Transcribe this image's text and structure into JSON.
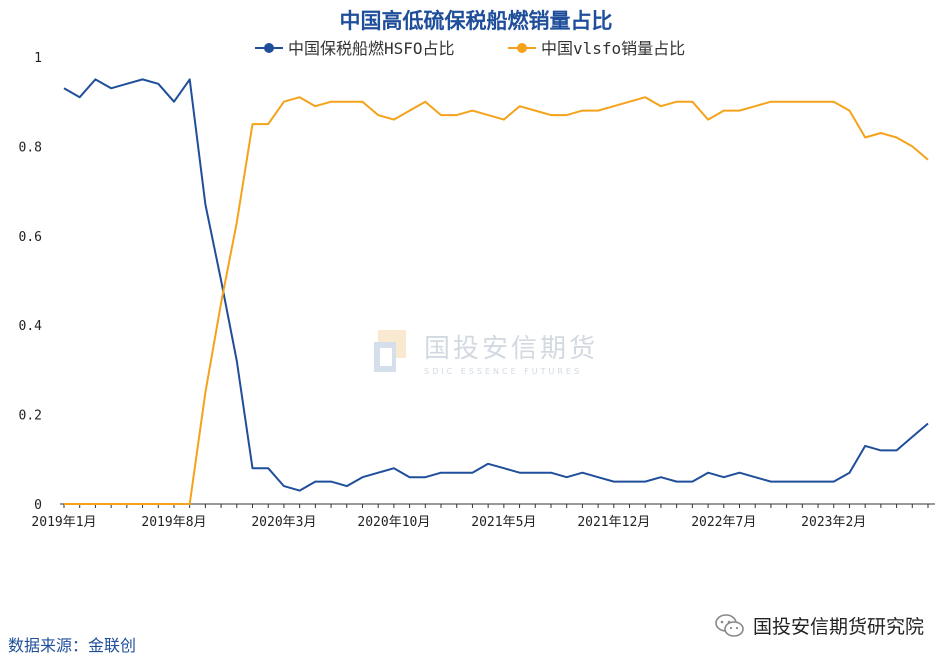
{
  "footer": {
    "source": "数据来源：金联创",
    "brand": "国投安信期货研究院"
  },
  "watermark": {
    "main": "国投安信期货",
    "sub": "SDIC ESSENCE FUTURES"
  },
  "colors": {
    "hsfo": "#1f4e9a",
    "vlsfo": "#f5a21b",
    "title": "#1f4e9a"
  },
  "chart_data": {
    "type": "line",
    "title": "中国高低硫保税船燃销量占比",
    "xlabel": "",
    "ylabel": "",
    "ylim": [
      0,
      1
    ],
    "yticks": [
      "0",
      "0.2",
      "0.4",
      "0.6",
      "0.8",
      "1"
    ],
    "x_tick_labels": [
      "2019年1月",
      "2019年8月",
      "2020年3月",
      "2020年10月",
      "2021年5月",
      "2021年12月",
      "2022年7月",
      "2023年2月"
    ],
    "legend_position": "top",
    "series": [
      {
        "name": "中国保税船燃HSFO占比",
        "color": "#1f4e9a",
        "values": [
          0.93,
          0.91,
          0.95,
          0.93,
          0.94,
          0.95,
          0.94,
          0.9,
          0.95,
          0.67,
          0.5,
          0.32,
          0.08,
          0.08,
          0.04,
          0.03,
          0.05,
          0.05,
          0.04,
          0.06,
          0.07,
          0.08,
          0.06,
          0.06,
          0.07,
          0.07,
          0.07,
          0.09,
          0.08,
          0.07,
          0.07,
          0.07,
          0.06,
          0.07,
          0.06,
          0.05,
          0.05,
          0.05,
          0.06,
          0.05,
          0.05,
          0.07,
          0.06,
          0.07,
          0.06,
          0.05,
          0.05,
          0.05,
          0.05,
          0.05,
          0.07,
          0.13,
          0.12,
          0.12,
          0.15,
          0.18
        ]
      },
      {
        "name": "中国vlsfo销量占比",
        "color": "#f5a21b",
        "values": [
          0,
          0,
          0,
          0,
          0,
          0,
          0,
          0,
          0,
          0.25,
          0.45,
          0.63,
          0.85,
          0.85,
          0.9,
          0.91,
          0.89,
          0.9,
          0.9,
          0.9,
          0.87,
          0.86,
          0.88,
          0.9,
          0.87,
          0.87,
          0.88,
          0.87,
          0.86,
          0.89,
          0.88,
          0.87,
          0.87,
          0.88,
          0.88,
          0.89,
          0.9,
          0.91,
          0.89,
          0.9,
          0.9,
          0.86,
          0.88,
          0.88,
          0.89,
          0.9,
          0.9,
          0.9,
          0.9,
          0.9,
          0.88,
          0.82,
          0.83,
          0.82,
          0.8,
          0.77
        ]
      }
    ]
  }
}
